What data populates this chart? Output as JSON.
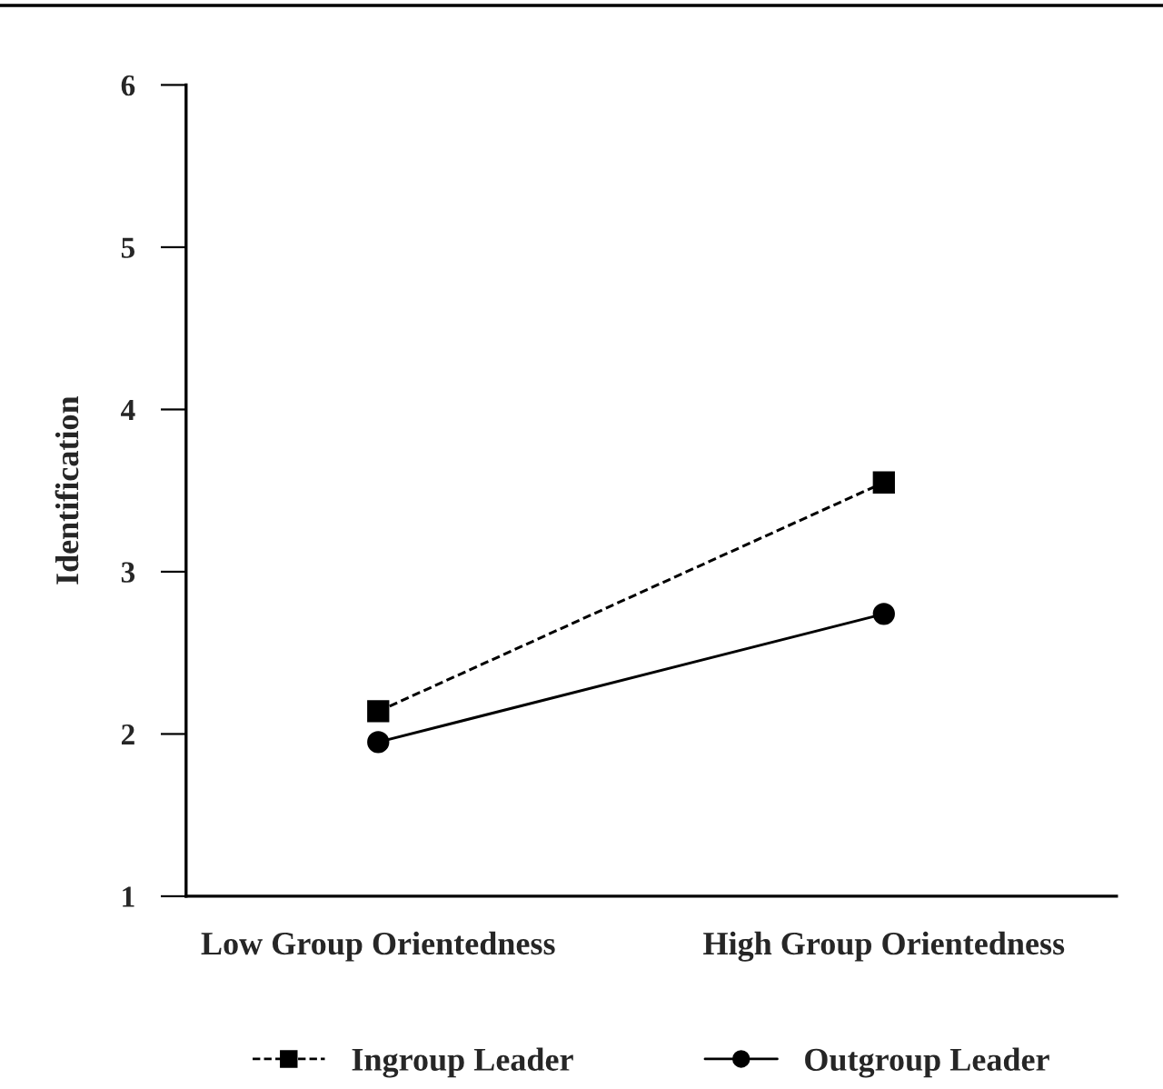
{
  "chart_data": {
    "type": "line",
    "ylabel": "Identification",
    "categories": [
      "Low Group Orientedness",
      "High Group Orientedness"
    ],
    "series": [
      {
        "name": "Ingroup Leader",
        "color": "#000000",
        "values": [
          2.14,
          3.55
        ],
        "marker": "square",
        "line_style": "dashed"
      },
      {
        "name": "Outgroup Leader",
        "color": "#000000",
        "values": [
          1.95,
          2.74
        ],
        "marker": "circle",
        "line_style": "solid"
      }
    ],
    "ylim": [
      1,
      6
    ],
    "yticks": [
      1,
      2,
      3,
      4,
      5,
      6
    ],
    "grid": false,
    "legend": "bottom"
  }
}
